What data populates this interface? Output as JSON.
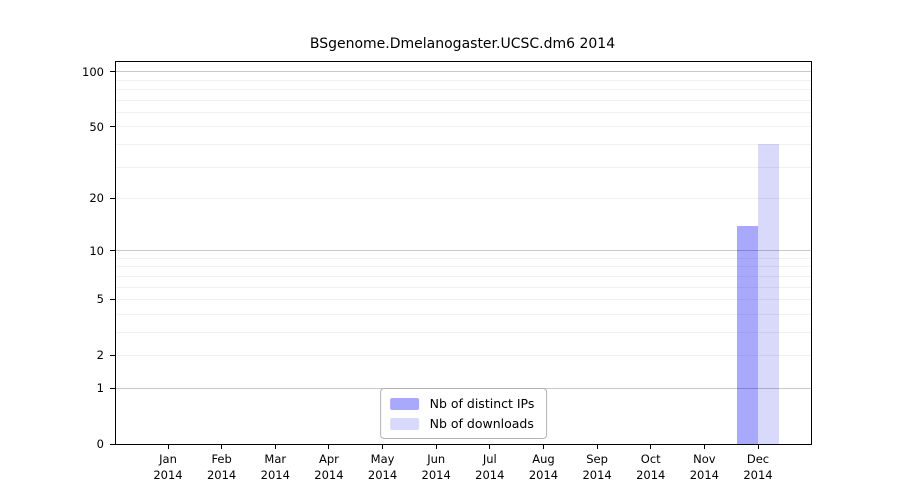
{
  "chart_data": {
    "type": "bar",
    "scale": "log1p",
    "title": "BSgenome.Dmelanogaster.UCSC.dm6 2014",
    "categories": [
      "Jan",
      "Feb",
      "Mar",
      "Apr",
      "May",
      "Jun",
      "Jul",
      "Aug",
      "Sep",
      "Oct",
      "Nov",
      "Dec"
    ],
    "year": "2014",
    "series": [
      {
        "name": "Nb of distinct IPs",
        "color": "#a9a9fb",
        "values": [
          0,
          0,
          0,
          0,
          0,
          0,
          0,
          0,
          0,
          0,
          0,
          14
        ]
      },
      {
        "name": "Nb of downloads",
        "color": "#d9d9fb",
        "values": [
          0,
          0,
          0,
          0,
          0,
          0,
          0,
          0,
          0,
          0,
          0,
          40
        ]
      }
    ],
    "yticks": [
      0,
      1,
      2,
      5,
      10,
      20,
      50,
      100
    ],
    "ylim": [
      0,
      113
    ],
    "grid": true,
    "legend_position": "bottom-center"
  }
}
